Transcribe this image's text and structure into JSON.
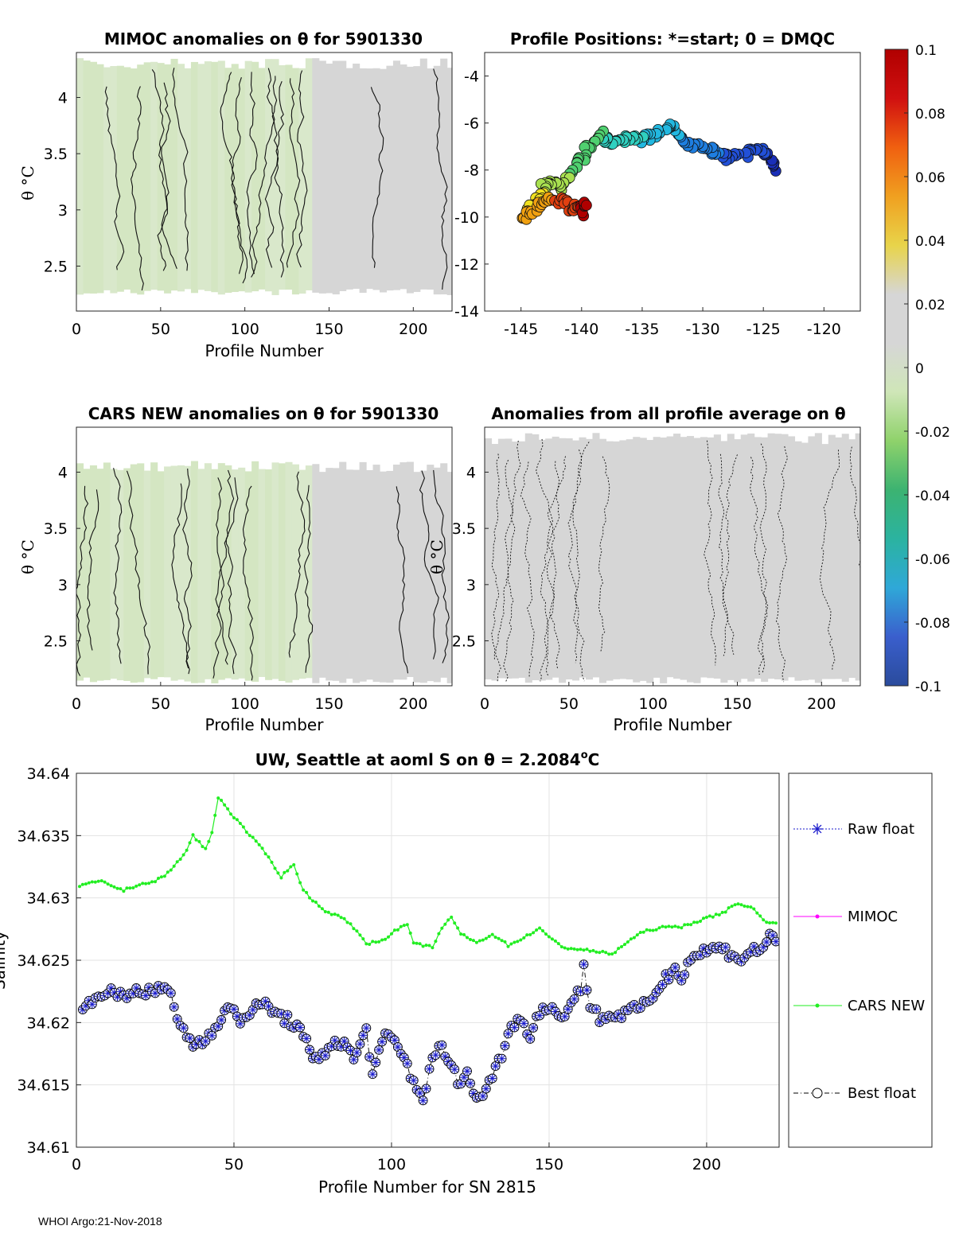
{
  "footer": "WHOI Argo:21-Nov-2018",
  "colors": {
    "anomaly_gray": "#d6d6d6",
    "anomaly_green": "#d4e6c2",
    "cars_green": "#22ee22",
    "raw_float_blue": "#1a1acc",
    "mimoc_magenta": "#ff00ff",
    "best_float_black": "#000000"
  },
  "colorbar": {
    "ticks": [
      "0.1",
      "0.08",
      "0.06",
      "0.04",
      "0.02",
      "0",
      "-0.02",
      "-0.04",
      "-0.06",
      "-0.08",
      "-0.1"
    ],
    "stops": [
      "#2a4b9c",
      "#3a5fcd",
      "#2fa8d8",
      "#2bb3a0",
      "#3cb371",
      "#8fd26b",
      "#cfe6b8",
      "#d6d6d6",
      "#d6d6d6",
      "#e8d44a",
      "#f0a020",
      "#f06010",
      "#d01010",
      "#b00000"
    ]
  },
  "chart_data": [
    {
      "id": "mimoc",
      "type": "heatmap",
      "title": "MIMOC anomalies on θ  for 5901330",
      "xlabel": "Profile Number",
      "ylabel": "θ °C",
      "xlim": [
        0,
        223
      ],
      "ylim": [
        2.1,
        4.4
      ],
      "xticks": [
        "0",
        "50",
        "100",
        "150",
        "200"
      ],
      "yticks": [
        "2.5",
        "3",
        "3.5",
        "4"
      ],
      "fill_range": [
        2.27,
        4.3
      ],
      "green_regions": [
        [
          0,
          137
        ]
      ],
      "contours_at_profiles": [
        18,
        38,
        45,
        52,
        58,
        92,
        98,
        104,
        114,
        118,
        122,
        127,
        134,
        175,
        212
      ]
    },
    {
      "id": "positions",
      "type": "scatter",
      "title": "Profile Positions: *=start; 0 = DMQC",
      "xlim": [
        -148,
        -117
      ],
      "ylim": [
        -14,
        -3
      ],
      "xticks": [
        "-145",
        "-140",
        "-135",
        "-130",
        "-125",
        "-120"
      ],
      "yticks": [
        "-14",
        "-12",
        "-10",
        "-8",
        "-6",
        "-4"
      ],
      "start_marker": [
        -125,
        -8.0
      ],
      "track": [
        [
          -124.0,
          -7.9
        ],
        [
          -124.5,
          -7.4
        ],
        [
          -125.3,
          -7.1
        ],
        [
          -126.5,
          -7.3
        ],
        [
          -127.8,
          -7.5
        ],
        [
          -129.0,
          -7.2
        ],
        [
          -130.0,
          -6.9
        ],
        [
          -131.2,
          -6.9
        ],
        [
          -132.2,
          -6.3
        ],
        [
          -133.0,
          -6.2
        ],
        [
          -134.2,
          -6.6
        ],
        [
          -135.2,
          -6.7
        ],
        [
          -136.4,
          -6.7
        ],
        [
          -137.6,
          -6.9
        ],
        [
          -138.4,
          -6.5
        ],
        [
          -139.4,
          -7.0
        ],
        [
          -140.2,
          -7.6
        ],
        [
          -141.0,
          -8.4
        ],
        [
          -141.8,
          -8.7
        ],
        [
          -142.6,
          -8.5
        ],
        [
          -143.2,
          -8.8
        ],
        [
          -143.6,
          -9.4
        ],
        [
          -144.0,
          -9.7
        ],
        [
          -144.5,
          -9.6
        ],
        [
          -144.8,
          -10.0
        ],
        [
          -143.5,
          -9.5
        ],
        [
          -142.5,
          -9.3
        ],
        [
          -141.6,
          -9.3
        ],
        [
          -140.8,
          -9.7
        ],
        [
          -140.2,
          -9.4
        ],
        [
          -139.9,
          -9.8
        ],
        [
          -139.6,
          -9.5
        ]
      ]
    },
    {
      "id": "cars",
      "type": "heatmap",
      "title": "CARS NEW anomalies on θ for 5901330",
      "xlabel": "Profile Number",
      "ylabel": "θ °C",
      "xlim": [
        0,
        223
      ],
      "ylim": [
        2.1,
        4.4
      ],
      "xticks": [
        "0",
        "50",
        "100",
        "150",
        "200"
      ],
      "yticks": [
        "2.5",
        "3",
        "3.5",
        "4"
      ],
      "fill_range": [
        2.15,
        4.05
      ],
      "green_regions": [
        [
          0,
          140
        ]
      ],
      "contours_at_profiles": [
        5,
        12,
        22,
        30,
        62,
        66,
        84,
        90,
        94,
        104,
        132,
        138,
        190,
        205,
        212
      ]
    },
    {
      "id": "allavg",
      "type": "heatmap",
      "title": "Anomalies from all profile average on θ",
      "xlabel": "Profile Number",
      "ylabel": "θ °C",
      "xlim": [
        0,
        223
      ],
      "ylim": [
        2.1,
        4.4
      ],
      "xticks": [
        "0",
        "50",
        "100",
        "150",
        "200"
      ],
      "yticks": [
        "2.5",
        "3",
        "3.5",
        "4"
      ],
      "fill_range": [
        2.15,
        4.3
      ],
      "green_regions": [],
      "contours_at_profiles": [
        8,
        14,
        20,
        26,
        34,
        42,
        48,
        56,
        62,
        70,
        132,
        140,
        150,
        158,
        164,
        178,
        210,
        218
      ]
    },
    {
      "id": "salinity",
      "type": "line",
      "title": "UW, Seattle at aoml S on θ = 2.2084",
      "title_suffix": "C",
      "degree_symbol": "o",
      "xlabel": "Profile Number for SN 2815",
      "ylabel": "Salinity",
      "xlim": [
        0,
        223
      ],
      "ylim": [
        34.61,
        34.64
      ],
      "xticks": [
        "0",
        "50",
        "100",
        "150",
        "200"
      ],
      "yticks": [
        "34.61",
        "34.615",
        "34.62",
        "34.625",
        "34.63",
        "34.635",
        "34.64"
      ],
      "legend": [
        "Raw float",
        "MIMOC",
        "CARS NEW",
        "Best float"
      ],
      "series": [
        {
          "name": "CARS NEW",
          "anchors": [
            [
              1,
              34.631
            ],
            [
              5,
              34.6312
            ],
            [
              8,
              34.6313
            ],
            [
              15,
              34.6306
            ],
            [
              20,
              34.6311
            ],
            [
              25,
              34.6313
            ],
            [
              30,
              34.6322
            ],
            [
              35,
              34.6338
            ],
            [
              37,
              34.635
            ],
            [
              41,
              34.6339
            ],
            [
              43,
              34.6352
            ],
            [
              45,
              34.6381
            ],
            [
              50,
              34.6365
            ],
            [
              60,
              34.6336
            ],
            [
              65,
              34.6317
            ],
            [
              69,
              34.6327
            ],
            [
              72,
              34.6306
            ],
            [
              78,
              34.6291
            ],
            [
              85,
              34.6283
            ],
            [
              90,
              34.6271
            ],
            [
              92,
              34.6263
            ],
            [
              97,
              34.6266
            ],
            [
              102,
              34.6275
            ],
            [
              105,
              34.6279
            ],
            [
              107,
              34.6263
            ],
            [
              113,
              34.6261
            ],
            [
              116,
              34.6275
            ],
            [
              119,
              34.6285
            ],
            [
              122,
              34.6271
            ],
            [
              127,
              34.6264
            ],
            [
              132,
              34.6271
            ],
            [
              137,
              34.6262
            ],
            [
              142,
              34.6268
            ],
            [
              147,
              34.6276
            ],
            [
              150,
              34.6268
            ],
            [
              155,
              34.626
            ],
            [
              162,
              34.6258
            ],
            [
              170,
              34.6255
            ],
            [
              175,
              34.6265
            ],
            [
              180,
              34.6273
            ],
            [
              185,
              34.6276
            ],
            [
              192,
              34.6277
            ],
            [
              198,
              34.6282
            ],
            [
              205,
              34.6288
            ],
            [
              210,
              34.6296
            ],
            [
              215,
              34.6291
            ],
            [
              218,
              34.6282
            ],
            [
              222,
              34.628
            ]
          ]
        },
        {
          "name": "Best float",
          "anchors": [
            [
              2,
              34.6207
            ],
            [
              5,
              34.6219
            ],
            [
              8,
              34.6225
            ],
            [
              15,
              34.6221
            ],
            [
              20,
              34.6227
            ],
            [
              25,
              34.6223
            ],
            [
              28,
              34.623
            ],
            [
              30,
              34.622
            ],
            [
              32,
              34.6203
            ],
            [
              34,
              34.6195
            ],
            [
              37,
              34.6182
            ],
            [
              40,
              34.6185
            ],
            [
              43,
              34.6194
            ],
            [
              46,
              34.6204
            ],
            [
              48,
              34.6212
            ],
            [
              52,
              34.6202
            ],
            [
              55,
              34.6209
            ],
            [
              60,
              34.6215
            ],
            [
              64,
              34.6206
            ],
            [
              70,
              34.6198
            ],
            [
              73,
              34.6183
            ],
            [
              75,
              34.6168
            ],
            [
              78,
              34.6174
            ],
            [
              82,
              34.6186
            ],
            [
              86,
              34.618
            ],
            [
              88,
              34.617
            ],
            [
              92,
              34.6195
            ],
            [
              94,
              34.6158
            ],
            [
              98,
              34.619
            ],
            [
              100,
              34.6187
            ],
            [
              104,
              34.6172
            ],
            [
              107,
              34.6152
            ],
            [
              110,
              34.614
            ],
            [
              112,
              34.616
            ],
            [
              115,
              34.6184
            ],
            [
              118,
              34.6168
            ],
            [
              121,
              34.6154
            ],
            [
              124,
              34.6158
            ],
            [
              127,
              34.6138
            ],
            [
              130,
              34.6147
            ],
            [
              133,
              34.6162
            ],
            [
              135,
              34.6175
            ],
            [
              137,
              34.6195
            ],
            [
              141,
              34.6203
            ],
            [
              144,
              34.619
            ],
            [
              147,
              34.621
            ],
            [
              150,
              34.621
            ],
            [
              155,
              34.6207
            ],
            [
              160,
              34.6228
            ],
            [
              161,
              34.6243
            ],
            [
              163,
              34.6215
            ],
            [
              166,
              34.6204
            ],
            [
              170,
              34.6205
            ],
            [
              175,
              34.6208
            ],
            [
              180,
              34.6213
            ],
            [
              184,
              34.6225
            ],
            [
              187,
              34.6236
            ],
            [
              190,
              34.6243
            ],
            [
              192,
              34.6238
            ],
            [
              195,
              34.6252
            ],
            [
              200,
              34.6258
            ],
            [
              204,
              34.626
            ],
            [
              208,
              34.6255
            ],
            [
              211,
              34.6251
            ],
            [
              215,
              34.6258
            ],
            [
              218,
              34.626
            ],
            [
              220,
              34.627
            ],
            [
              222,
              34.6264
            ]
          ]
        }
      ]
    }
  ]
}
